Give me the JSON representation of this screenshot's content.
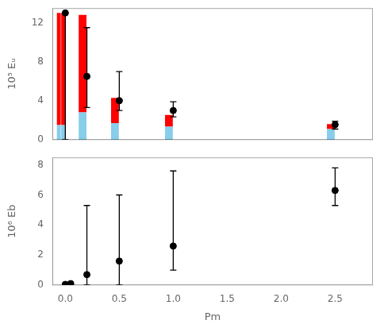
{
  "chart_data": [
    {
      "type": "bar",
      "stacked": true,
      "ylabel": "10⁵ Eᵤ",
      "x": [
        0,
        0,
        0.2,
        0.5,
        1.0,
        2.5
      ],
      "series": [
        {
          "type": "bar",
          "color": "#87ceeb",
          "values": [
            1.5,
            1.5,
            2.8,
            1.7,
            1.35,
            1.1
          ]
        },
        {
          "type": "bar",
          "color": "#ff0000",
          "values": [
            11.5,
            11.5,
            10.0,
            2.6,
            1.2,
            0.5
          ]
        },
        {
          "type": "scatter",
          "color": "#000000",
          "marker": "circle",
          "x": [
            0,
            0.2,
            0.5,
            1.0,
            2.5
          ],
          "values": [
            13.0,
            6.5,
            4.0,
            3.0,
            1.55
          ],
          "err_minus": [
            13.0,
            3.2,
            1.0,
            0.65,
            0.45
          ],
          "err_plus": [
            0.0,
            5.0,
            3.0,
            0.9,
            0.35
          ]
        }
      ],
      "xlim": [
        -0.12,
        2.85
      ],
      "xticks": [
        {
          "value": 0,
          "label": "0.0"
        },
        0.5,
        {
          "value": 1,
          "label": "1.0"
        },
        1.5,
        {
          "value": 2,
          "label": "2.0"
        },
        2.5
      ],
      "ylim": [
        0,
        13.5
      ],
      "yticks": [
        0,
        4,
        8,
        12
      ],
      "grid": false,
      "tick_labels": "y"
    },
    {
      "type": "scatter",
      "xlabel": "Pm",
      "ylabel": "10⁶ Eb",
      "series": [
        {
          "type": "scatter",
          "color": "#000000",
          "marker": "circle",
          "x": [
            0,
            0.05,
            0.2,
            0.5,
            1.0,
            2.5
          ],
          "values": [
            0.05,
            0.1,
            0.7,
            1.6,
            2.6,
            6.3
          ],
          "err_minus": [
            0.05,
            0.1,
            0.7,
            1.6,
            1.6,
            1.0
          ],
          "err_plus": [
            0.0,
            0.0,
            4.6,
            4.4,
            5.0,
            1.5
          ]
        }
      ],
      "xlim": [
        -0.12,
        2.85
      ],
      "xticks": [
        {
          "value": 0,
          "label": "0.0"
        },
        0.5,
        {
          "value": 1,
          "label": "1.0"
        },
        1.5,
        {
          "value": 2,
          "label": "2.0"
        },
        2.5
      ],
      "ylim": [
        0,
        8.5
      ],
      "yticks": [
        0,
        2,
        4,
        6,
        8
      ],
      "grid": false
    }
  ]
}
